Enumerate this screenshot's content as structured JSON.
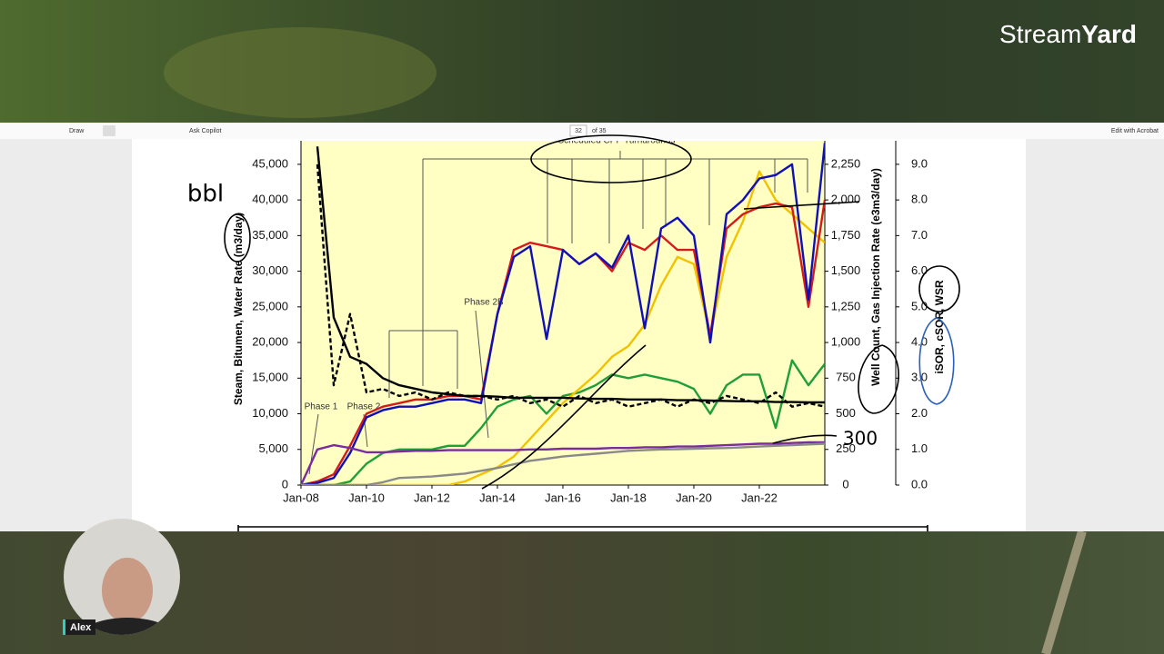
{
  "brand": [
    "Stream",
    "Yard"
  ],
  "viewer": {
    "toolbar": [
      "Draw",
      "Ask Copilot",
      "32",
      "of 35",
      "Edit with Acrobat"
    ]
  },
  "participant": "Alex",
  "handwriting": [
    "bbl",
    "300"
  ],
  "chart_data": {
    "type": "line",
    "ylabel": "Steam, Bitumen, Water Rate (m3/day)",
    "y2label": "Well Count, Gas Injection Rate (e3m3/day)",
    "y3label": "iSOR, cSOR, WSR",
    "annotations": [
      "Phase 1",
      "Phase 2",
      "Phase 2B",
      "Scheduled CPF Turnarounds"
    ],
    "xlim": [
      2008,
      2024
    ],
    "xticks": [
      {
        "value": 2008,
        "label": "Jan-08"
      },
      {
        "value": 2010,
        "label": "Jan-10"
      },
      {
        "value": 2012,
        "label": "Jan-12"
      },
      {
        "value": 2014,
        "label": "Jan-14"
      },
      {
        "value": 2016,
        "label": "Jan-16"
      },
      {
        "value": 2018,
        "label": "Jan-18"
      },
      {
        "value": 2020,
        "label": "Jan-20"
      },
      {
        "value": 2022,
        "label": "Jan-22"
      }
    ],
    "ylim": [
      0,
      48300
    ],
    "yticks": [
      0,
      {
        "value": 5000,
        "label": "5,000"
      },
      {
        "value": 10000,
        "label": "10,000"
      },
      {
        "value": 15000,
        "label": "15,000"
      },
      {
        "value": 20000,
        "label": "20,000"
      },
      {
        "value": 25000,
        "label": "25,000"
      },
      {
        "value": 30000,
        "label": "30,000"
      },
      {
        "value": 35000,
        "label": "35,000"
      },
      {
        "value": 40000,
        "label": "40,000"
      },
      {
        "value": 45000,
        "label": "45,000"
      }
    ],
    "y2lim": [
      0,
      2415
    ],
    "y2ticks": [
      0,
      250,
      500,
      750,
      {
        "value": 1000,
        "label": "1,000"
      },
      {
        "value": 1250,
        "label": "1,250"
      },
      {
        "value": 1500,
        "label": "1,500"
      },
      {
        "value": 1750,
        "label": "1,750"
      },
      {
        "value": 2000,
        "label": "2,000"
      },
      {
        "value": 2250,
        "label": "2,250"
      }
    ],
    "y3lim": [
      0,
      9.66
    ],
    "y3ticks": [
      {
        "value": 0,
        "label": "0.0"
      },
      {
        "value": 1,
        "label": "1.0"
      },
      {
        "value": 2,
        "label": "2.0"
      },
      {
        "value": 3,
        "label": "3.0"
      },
      {
        "value": 4,
        "label": "4.0"
      },
      {
        "value": 5,
        "label": "5.0"
      },
      {
        "value": 6,
        "label": "6.0"
      },
      {
        "value": 7,
        "label": "7.0"
      },
      {
        "value": 8,
        "label": "8.0"
      },
      {
        "value": 9,
        "label": "9.0"
      }
    ],
    "x": [
      2008,
      2008.5,
      2009,
      2009.5,
      2010,
      2010.5,
      2011,
      2011.5,
      2012,
      2012.5,
      2013,
      2013.5,
      2014,
      2014.5,
      2015,
      2015.5,
      2016,
      2016.5,
      2017,
      2017.5,
      2018,
      2018.5,
      2019,
      2019.5,
      2020,
      2020.5,
      2021,
      2021.5,
      2022,
      2022.5,
      2023,
      2023.5,
      2024
    ],
    "series": [
      {
        "color": "#1f9e3a",
        "values": [
          0,
          0,
          0,
          500,
          3000,
          4500,
          5000,
          5000,
          5000,
          5500,
          5500,
          8000,
          11000,
          12000,
          12500,
          10000,
          12500,
          13000,
          14000,
          15500,
          15000,
          15500,
          15000,
          14500,
          13500,
          10000,
          14000,
          15500,
          15500,
          8000,
          17500,
          14000,
          17000
        ]
      },
      {
        "color": "#f2c200",
        "values": [
          0,
          0,
          0,
          0,
          0,
          0,
          0,
          0,
          0,
          0,
          500,
          1500,
          2500,
          4000,
          6500,
          9000,
          11500,
          13500,
          15500,
          18000,
          19500,
          22500,
          28000,
          32000,
          31000,
          21000,
          32000,
          37000,
          44000,
          40000,
          38000,
          36000,
          34000
        ]
      },
      {
        "color": "#d41a1a",
        "values": [
          0,
          500,
          1500,
          5500,
          10000,
          11000,
          11500,
          12000,
          12000,
          12500,
          12500,
          12000,
          24000,
          33000,
          34000,
          33500,
          33000,
          31000,
          32500,
          30000,
          34000,
          33000,
          35000,
          33000,
          33000,
          21000,
          36000,
          38000,
          39000,
          39500,
          39000,
          25000,
          40000
        ]
      },
      {
        "color": "#1010b8",
        "values": [
          0,
          300,
          1000,
          4500,
          9500,
          10500,
          11000,
          11000,
          11500,
          12000,
          12000,
          11500,
          24000,
          32000,
          33500,
          20500,
          33000,
          31000,
          32500,
          30500,
          35000,
          22000,
          36000,
          37500,
          35000,
          20000,
          38000,
          40000,
          43000,
          43500,
          45000,
          26000,
          48000
        ]
      },
      {
        "color": "#7a2c9e",
        "axis": "y2",
        "values": [
          0,
          250,
          280,
          260,
          230,
          230,
          235,
          240,
          240,
          245,
          245,
          245,
          245,
          245,
          250,
          250,
          255,
          255,
          255,
          260,
          260,
          265,
          265,
          270,
          270,
          275,
          280,
          285,
          290,
          290,
          295,
          300,
          300
        ]
      },
      {
        "color": "#8a8a8a",
        "axis": "y2",
        "values": [
          0,
          0,
          0,
          0,
          0,
          20,
          50,
          55,
          60,
          70,
          80,
          100,
          120,
          145,
          170,
          185,
          200,
          210,
          220,
          230,
          240,
          245,
          250,
          252,
          255,
          258,
          260,
          265,
          270,
          275,
          280,
          285,
          290
        ]
      },
      {
        "color": "#000000",
        "axis": "y3",
        "values": [
          null,
          9.5,
          4.7,
          3.6,
          3.4,
          3.0,
          2.8,
          2.7,
          2.6,
          2.55,
          2.5,
          2.5,
          2.48,
          2.45,
          2.45,
          2.45,
          2.45,
          2.43,
          2.42,
          2.42,
          2.4,
          2.4,
          2.4,
          2.38,
          2.38,
          2.37,
          2.36,
          2.35,
          2.35,
          2.33,
          2.33,
          2.32,
          2.32
        ]
      },
      {
        "color": "#000000",
        "axis": "y3",
        "dash": true,
        "values": [
          null,
          9.0,
          2.8,
          4.8,
          2.6,
          2.7,
          2.5,
          2.6,
          2.4,
          2.6,
          2.5,
          2.5,
          2.4,
          2.5,
          2.3,
          2.4,
          2.2,
          2.5,
          2.3,
          2.4,
          2.2,
          2.3,
          2.4,
          2.2,
          2.4,
          2.3,
          2.5,
          2.4,
          2.3,
          2.6,
          2.2,
          2.3,
          2.2
        ]
      }
    ]
  }
}
